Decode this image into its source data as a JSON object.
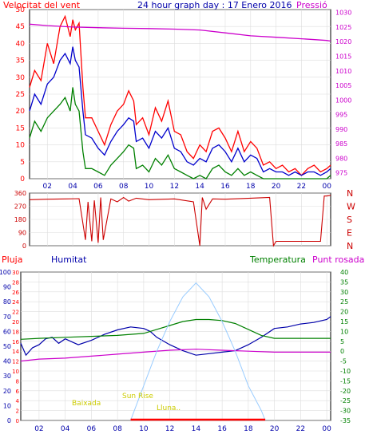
{
  "colors": {
    "wind_speed": "#ff0000",
    "wind_avg": "#0000cc",
    "wind_gust_low": "#008000",
    "pressure": "#cc00cc",
    "direction": "#cc0000",
    "humidity": "#0000aa",
    "temperature": "#008000",
    "dewpoint": "#cc00cc",
    "rain": "#ff0000",
    "solar": "#99ccff",
    "astro_label": "#cccc00",
    "frame": "#000000",
    "bg": "#ffffff"
  },
  "chart_data": [
    {
      "type": "line",
      "title": "24 hour graph day : 17 Enero 2016",
      "left_axis_label": "Velocitat del vent",
      "right_axis_label": "Pressió",
      "x_ticks": [
        "02",
        "04",
        "06",
        "08",
        "10",
        "12",
        "14",
        "16",
        "18",
        "20",
        "22",
        "00"
      ],
      "y_left_ticks": [
        "0",
        "5",
        "10",
        "15",
        "20",
        "25",
        "30",
        "35",
        "40",
        "45",
        "50"
      ],
      "y_right_ticks": [
        "975",
        "980",
        "985",
        "990",
        "995",
        "1000",
        "1005",
        "1010",
        "1015",
        "1020",
        "1025",
        "1030"
      ],
      "ylim_left": [
        0,
        50
      ],
      "ylim_right": [
        973,
        1031
      ],
      "xlim": [
        0.6,
        24.3
      ],
      "series": [
        {
          "color": "wind_speed",
          "x": [
            0.6,
            1.0,
            1.5,
            2.0,
            2.5,
            3.0,
            3.4,
            3.8,
            4.0,
            4.2,
            4.5,
            4.8,
            5.0,
            5.5,
            6.0,
            6.5,
            7.0,
            7.5,
            8.0,
            8.4,
            8.8,
            9.0,
            9.5,
            10.0,
            10.5,
            11.0,
            11.5,
            12.0,
            12.5,
            13.0,
            13.5,
            14.0,
            14.5,
            15.0,
            15.5,
            16.0,
            16.5,
            17.0,
            17.5,
            18.0,
            18.5,
            19.0,
            19.5,
            20.0,
            20.5,
            21.0,
            21.5,
            22.0,
            22.5,
            23.0,
            23.5,
            24.0,
            24.3
          ],
          "y": [
            27,
            32,
            29,
            40,
            34,
            45,
            48,
            42,
            47,
            44,
            46,
            27,
            18,
            18,
            14,
            10,
            16,
            20,
            22,
            26,
            23,
            16,
            18,
            13,
            21,
            17,
            23,
            14,
            13,
            8,
            6,
            10,
            8,
            14,
            15,
            12,
            8,
            14,
            8,
            11,
            9,
            4,
            5,
            3,
            4,
            2,
            3,
            1,
            3,
            4,
            2,
            3,
            4
          ]
        },
        {
          "color": "wind_avg",
          "x": [
            0.6,
            1.0,
            1.5,
            2.0,
            2.5,
            3.0,
            3.4,
            3.8,
            4.0,
            4.2,
            4.5,
            4.8,
            5.0,
            5.5,
            6.0,
            6.5,
            7.0,
            7.5,
            8.0,
            8.4,
            8.8,
            9.0,
            9.5,
            10.0,
            10.5,
            11.0,
            11.5,
            12.0,
            12.5,
            13.0,
            13.5,
            14.0,
            14.5,
            15.0,
            15.5,
            16.0,
            16.5,
            17.0,
            17.5,
            18.0,
            18.5,
            19.0,
            19.5,
            20.0,
            20.5,
            21.0,
            21.5,
            22.0,
            22.5,
            23.0,
            23.5,
            24.0,
            24.3
          ],
          "y": [
            20,
            25,
            22,
            28,
            30,
            35,
            37,
            34,
            39,
            35,
            33,
            20,
            13,
            12,
            9,
            7,
            11,
            14,
            16,
            18,
            17,
            11,
            12,
            9,
            14,
            12,
            15,
            9,
            8,
            5,
            4,
            6,
            5,
            9,
            10,
            8,
            5,
            9,
            5,
            7,
            6,
            2,
            3,
            2,
            2,
            1,
            2,
            1,
            2,
            2,
            1,
            2,
            3
          ]
        },
        {
          "color": "wind_gust_low",
          "x": [
            0.6,
            1.0,
            1.5,
            2.0,
            2.5,
            3.0,
            3.4,
            3.8,
            4.0,
            4.2,
            4.5,
            4.8,
            5.0,
            5.5,
            6.0,
            6.5,
            7.0,
            7.5,
            8.0,
            8.4,
            8.8,
            9.0,
            9.5,
            10.0,
            10.5,
            11.0,
            11.5,
            12.0,
            12.5,
            13.0,
            13.5,
            14.0,
            14.5,
            15.0,
            15.5,
            16.0,
            16.5,
            17.0,
            17.5,
            18.0,
            18.5,
            19.0,
            19.5,
            20.0,
            20.5,
            21.0,
            21.5,
            22.0,
            22.5,
            23.0,
            23.5,
            24.0,
            24.3
          ],
          "y": [
            12,
            17,
            14,
            18,
            20,
            22,
            24,
            20,
            27,
            22,
            20,
            8,
            3,
            3,
            2,
            1,
            4,
            6,
            8,
            10,
            9,
            3,
            4,
            2,
            6,
            4,
            7,
            3,
            2,
            1,
            0,
            1,
            0,
            3,
            4,
            2,
            1,
            3,
            1,
            2,
            1,
            0,
            0,
            0,
            0,
            0,
            0,
            0,
            0,
            0,
            0,
            0,
            1
          ]
        },
        {
          "color": "pressure",
          "axis": "right",
          "x": [
            0.6,
            2,
            4,
            6,
            8,
            10,
            12,
            14,
            16,
            18,
            20,
            22,
            24,
            24.3
          ],
          "y": [
            1026,
            1025.5,
            1025,
            1024.8,
            1024.6,
            1024.5,
            1024.3,
            1024,
            1023,
            1022,
            1021.5,
            1021,
            1020.4,
            1020.2
          ]
        }
      ]
    },
    {
      "type": "line",
      "title": "",
      "y_ticks": [
        "360",
        "270",
        "180",
        "90",
        "0"
      ],
      "compass_labels": [
        "N",
        "W",
        "S",
        "E",
        "N"
      ],
      "ylim": [
        0,
        360
      ],
      "series": [
        {
          "color": "direction",
          "x": [
            0.6,
            2,
            3.5,
            4.5,
            5.0,
            5.2,
            5.5,
            5.7,
            6.0,
            6.2,
            6.4,
            7.0,
            7.5,
            8.0,
            8.4,
            9.0,
            10,
            12,
            13.5,
            14.0,
            14.2,
            14.5,
            15,
            16,
            18,
            19.5,
            19.8,
            20.0,
            21,
            22,
            23.5,
            23.8,
            24.0,
            24.3
          ],
          "y": [
            315,
            318,
            320,
            322,
            40,
            300,
            30,
            310,
            20,
            330,
            40,
            320,
            300,
            330,
            305,
            325,
            315,
            320,
            300,
            0,
            330,
            250,
            320,
            318,
            325,
            330,
            0,
            30,
            30,
            30,
            30,
            340,
            340,
            345
          ]
        }
      ]
    },
    {
      "type": "line",
      "title": "",
      "labels": {
        "rain": "Pluja",
        "humidity": "Humitat",
        "temperature": "Temperatura",
        "dewpoint": "Punt rosada"
      },
      "y_hum_ticks": [
        "0",
        "10",
        "20",
        "30",
        "40",
        "50",
        "60",
        "70",
        "80",
        "90",
        "100"
      ],
      "y_rain_ticks": [
        "0",
        "2",
        "4",
        "6",
        "8",
        "10",
        "12",
        "14",
        "16",
        "18",
        "20",
        "22",
        "24",
        "26",
        "28",
        "30"
      ],
      "y_temp_ticks": [
        "-35",
        "-30",
        "-25",
        "-20",
        "-15",
        "-10",
        "-5",
        "0",
        "5",
        "10",
        "15",
        "20",
        "25",
        "30",
        "35",
        "40"
      ],
      "ylim_humidity": [
        0,
        100
      ],
      "ylim_temperature": [
        -35,
        40
      ],
      "astro_labels": {
        "moonrise": "Baixada",
        "sunrise": "Sun Rise",
        "moonset": "Lluna.."
      },
      "series": [
        {
          "color": "humidity",
          "x": [
            0.6,
            1.0,
            1.5,
            2.0,
            2.5,
            3.0,
            3.5,
            4.0,
            4.5,
            5.0,
            6.0,
            7.0,
            8.0,
            9.0,
            10.0,
            10.5,
            11.0,
            12.0,
            13.0,
            14.0,
            15.0,
            16.0,
            17.0,
            18.0,
            19.0,
            20.0,
            21.0,
            22.0,
            23.0,
            24.0,
            24.3
          ],
          "y": [
            52,
            44,
            49,
            51,
            55,
            56,
            52,
            55,
            53,
            51,
            54,
            58,
            61,
            63,
            62,
            60,
            56,
            51,
            47,
            44,
            45,
            46,
            47,
            51,
            56,
            62,
            63,
            65,
            66,
            68,
            70
          ]
        },
        {
          "color": "temperature",
          "axis": "temp",
          "x": [
            0.6,
            2,
            4,
            6,
            8,
            10,
            11,
            12,
            13,
            14,
            15,
            16,
            17,
            18,
            19,
            20,
            22,
            24,
            24.3
          ],
          "y": [
            6,
            6.5,
            7,
            7.5,
            8,
            9,
            11,
            13,
            15,
            16,
            16,
            15.5,
            14,
            11,
            8,
            6.5,
            6.5,
            6.5,
            6.5
          ]
        },
        {
          "color": "dewpoint",
          "axis": "temp",
          "x": [
            0.6,
            2,
            4,
            6,
            8,
            10,
            12,
            14,
            16,
            18,
            20,
            22,
            24,
            24.3
          ],
          "y": [
            -5,
            -4,
            -3.5,
            -2.5,
            -1.5,
            -0.5,
            0.5,
            1,
            0.5,
            0,
            -0.5,
            -0.5,
            -0.5,
            -0.5
          ]
        },
        {
          "color": "solar",
          "axis": "rain",
          "x": [
            9.0,
            10,
            11,
            12,
            13,
            14,
            15,
            16,
            17,
            18,
            19,
            19.3
          ],
          "y": [
            0,
            7,
            14,
            20,
            25,
            27.8,
            25,
            20,
            14,
            7,
            2,
            0
          ]
        }
      ]
    }
  ]
}
